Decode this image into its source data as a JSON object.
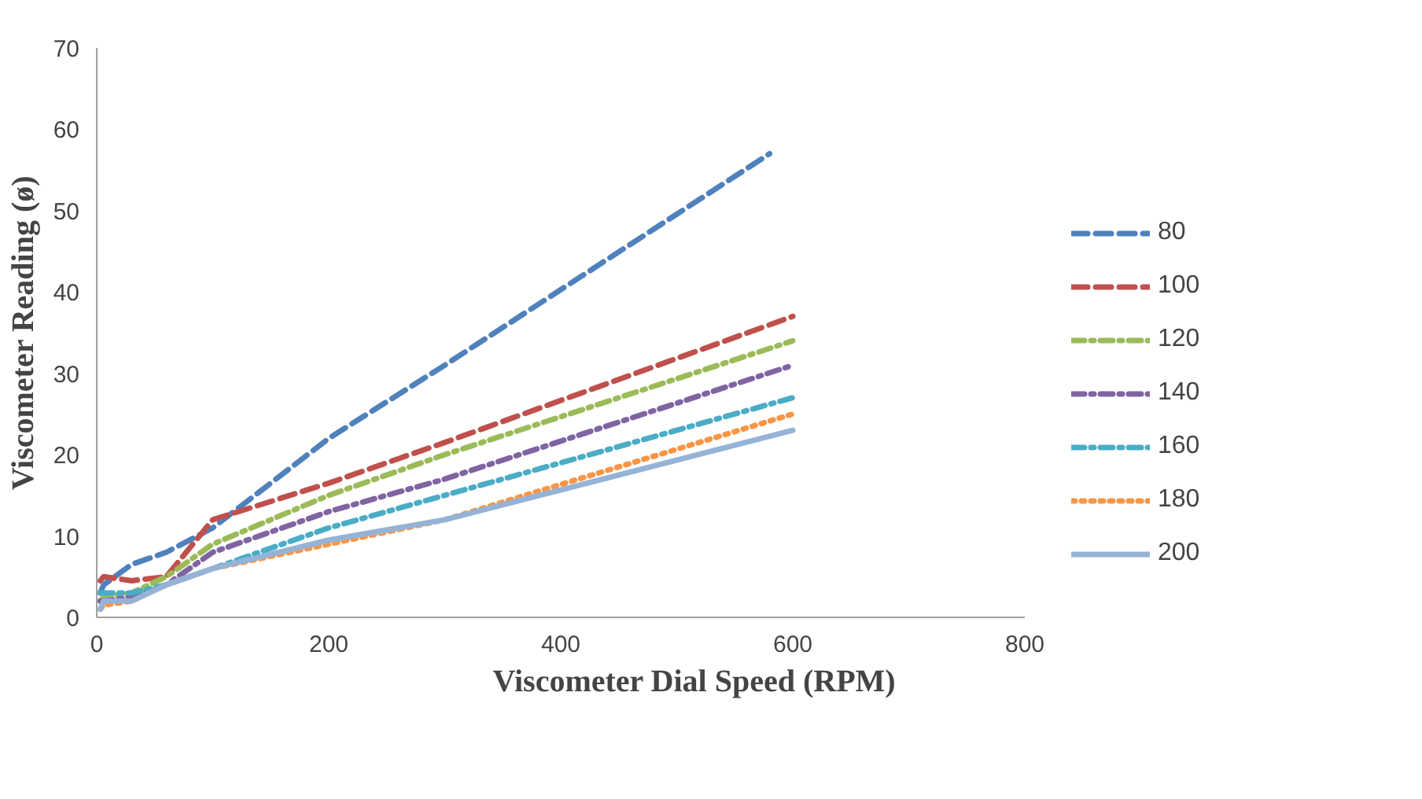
{
  "chart_data": {
    "type": "line",
    "xlabel": "Viscometer Dial Speed (RPM)",
    "ylabel": "Viscometer Reading (ø)",
    "x": [
      3,
      6,
      30,
      60,
      100,
      200,
      300,
      600
    ],
    "xlim": [
      0,
      800
    ],
    "xticks": [
      0,
      200,
      400,
      600,
      800
    ],
    "ylim": [
      0,
      70
    ],
    "yticks": [
      0,
      10,
      20,
      30,
      40,
      50,
      60,
      70
    ],
    "grid": false,
    "legend": "right",
    "series": [
      {
        "name": "80",
        "color": "#4f81bd",
        "line_style": "dashed",
        "x": [
          3,
          6,
          30,
          60,
          100,
          200,
          300,
          580
        ],
        "values": [
          3,
          4,
          6.5,
          8,
          11,
          22,
          31,
          57
        ]
      },
      {
        "name": "100",
        "color": "#c0504d",
        "line_style": "dashed",
        "values": [
          4.5,
          5,
          4.5,
          5,
          12,
          16.5,
          21.5,
          37
        ]
      },
      {
        "name": "120",
        "color": "#9bbb59",
        "line_style": "dashdot",
        "values": [
          2,
          2.5,
          3,
          5,
          9,
          15,
          20,
          34
        ]
      },
      {
        "name": "140",
        "color": "#8064a2",
        "line_style": "dashdot",
        "values": [
          2,
          2,
          2.5,
          4,
          8,
          13,
          17,
          31
        ]
      },
      {
        "name": "160",
        "color": "#4bacc6",
        "line_style": "dashdot",
        "values": [
          3,
          3,
          3,
          4,
          6,
          11,
          15,
          27
        ]
      },
      {
        "name": "180",
        "color": "#f79646",
        "line_style": "dotted",
        "values": [
          1,
          1.5,
          2,
          4,
          6,
          9,
          12,
          25
        ]
      },
      {
        "name": "200",
        "color": "#95b3d7",
        "line_style": "solid",
        "values": [
          1,
          2,
          2,
          4,
          6,
          9.5,
          12,
          23
        ]
      }
    ]
  }
}
